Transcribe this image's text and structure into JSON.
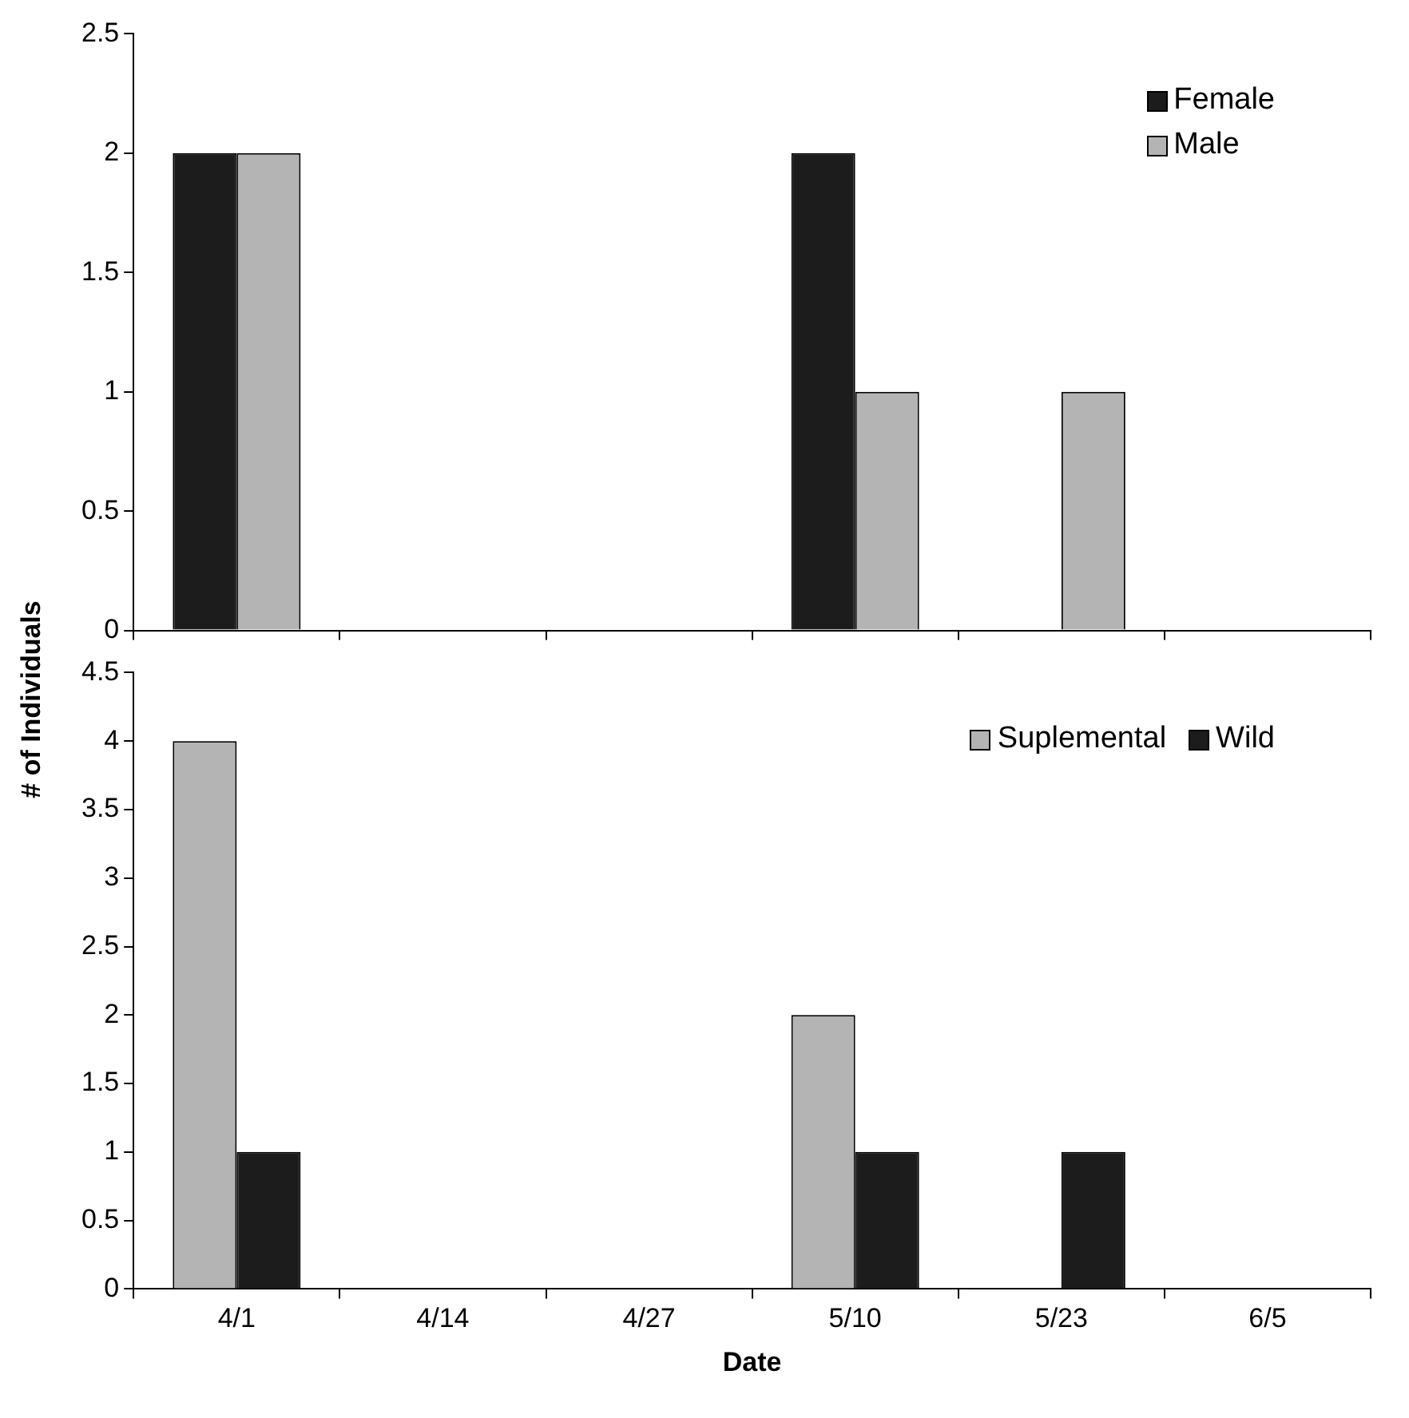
{
  "chart_data": [
    {
      "type": "bar",
      "ylabel": "# of Individuals",
      "categories": [
        null,
        null,
        null,
        null,
        null,
        null
      ],
      "series": [
        {
          "name": "Female",
          "color": "#1c1c1c",
          "values": [
            2,
            null,
            null,
            2,
            null,
            null
          ]
        },
        {
          "name": "Male",
          "color": "#b4b4b4",
          "values": [
            2,
            null,
            null,
            1,
            1,
            null
          ]
        }
      ],
      "ylim": [
        0,
        2.5
      ],
      "yticks": [
        0,
        0.5,
        1,
        1.5,
        2,
        2.5
      ],
      "grid": false,
      "legend": "top right",
      "tick_labels": "y"
    },
    {
      "type": "bar",
      "xlabel": "Date",
      "categories": [
        "4/1",
        "4/14",
        "4/27",
        "5/10",
        "5/23",
        "6/5"
      ],
      "series": [
        {
          "name": "Suplemental",
          "color": "#b4b4b4",
          "values": [
            4,
            null,
            null,
            2,
            null,
            null
          ]
        },
        {
          "name": "Wild",
          "color": "#1c1c1c",
          "values": [
            1,
            null,
            null,
            1,
            1,
            null
          ]
        }
      ],
      "ylim": [
        0,
        4.5
      ],
      "yticks": [
        0,
        0.5,
        1,
        1.5,
        2,
        2.5,
        3,
        3.5,
        4,
        4.5
      ],
      "grid": false,
      "legend": "top right"
    }
  ]
}
